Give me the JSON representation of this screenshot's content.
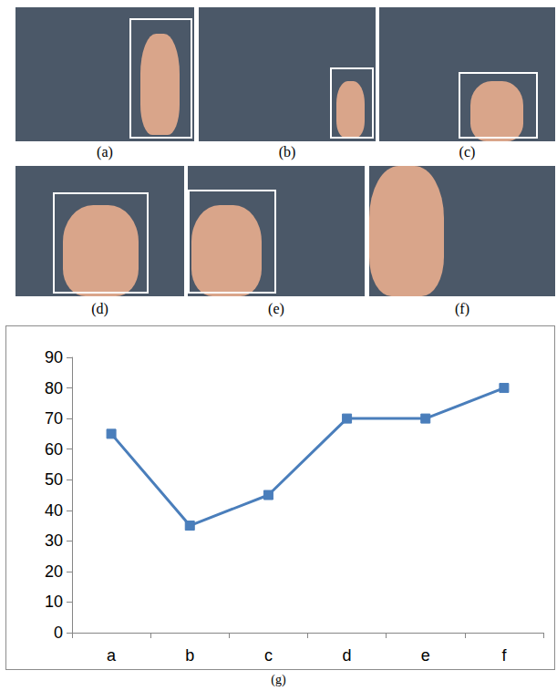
{
  "panels": [
    {
      "label": "(a)"
    },
    {
      "label": "(b)"
    },
    {
      "label": "(c)"
    },
    {
      "label": "(d)"
    },
    {
      "label": "(e)"
    },
    {
      "label": "(f)"
    }
  ],
  "chart_data": {
    "type": "line",
    "xlabel": "(g)",
    "categories": [
      "a",
      "b",
      "c",
      "d",
      "e",
      "f"
    ],
    "values": [
      65,
      35,
      45,
      70,
      70,
      80
    ],
    "color": "#4a7ebb",
    "marker": "square",
    "line_style": "solid",
    "ylim": [
      0,
      90
    ],
    "yticks": [
      0,
      10,
      20,
      30,
      40,
      50,
      60,
      70,
      80,
      90
    ],
    "grid": false
  }
}
